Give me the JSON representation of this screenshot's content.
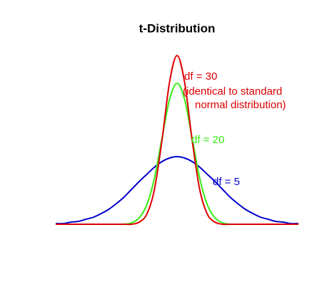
{
  "chart_data": {
    "type": "line",
    "title": "t-Distribution",
    "x": [
      -4,
      -3.75,
      -3.5,
      -3.25,
      -3,
      -2.75,
      -2.5,
      -2.25,
      -2,
      -1.75,
      -1.5,
      -1.25,
      -1,
      -0.75,
      -0.5,
      -0.25,
      0,
      0.25,
      0.5,
      0.75,
      1,
      1.25,
      1.5,
      1.75,
      2,
      2.25,
      2.5,
      2.75,
      3,
      3.25,
      3.5,
      3.75,
      4
    ],
    "xlim": [
      -4,
      4
    ],
    "ylim": [
      0,
      250
    ],
    "series": [
      {
        "name": "df = 30",
        "color": "#dd0000",
        "values": [
          0,
          0,
          0,
          0,
          0,
          0,
          0,
          0,
          0,
          0,
          0,
          3,
          14,
          48,
          117,
          199,
          237,
          199,
          117,
          48,
          14,
          3,
          0,
          0,
          0,
          0,
          0,
          0,
          0,
          0,
          0,
          0,
          0
        ]
      },
      {
        "name": "df = 20",
        "color": "#33ee11",
        "values": [
          0,
          0,
          0,
          0,
          0,
          0,
          0,
          0,
          0,
          0,
          2,
          9,
          27,
          64,
          120,
          175,
          198,
          175,
          120,
          64,
          27,
          9,
          2,
          0,
          0,
          0,
          0,
          0,
          0,
          0,
          0,
          0,
          0
        ]
      },
      {
        "name": "df = 5",
        "color": "#0000cc",
        "values": [
          1,
          1,
          3,
          4,
          7,
          10,
          15,
          21,
          29,
          38,
          49,
          60,
          70,
          80,
          88,
          93,
          95,
          93,
          88,
          80,
          70,
          60,
          49,
          38,
          29,
          21,
          15,
          10,
          7,
          4,
          3,
          1,
          1
        ]
      }
    ],
    "annotations": [
      "(identical to standard",
      "normal distribution)"
    ]
  }
}
